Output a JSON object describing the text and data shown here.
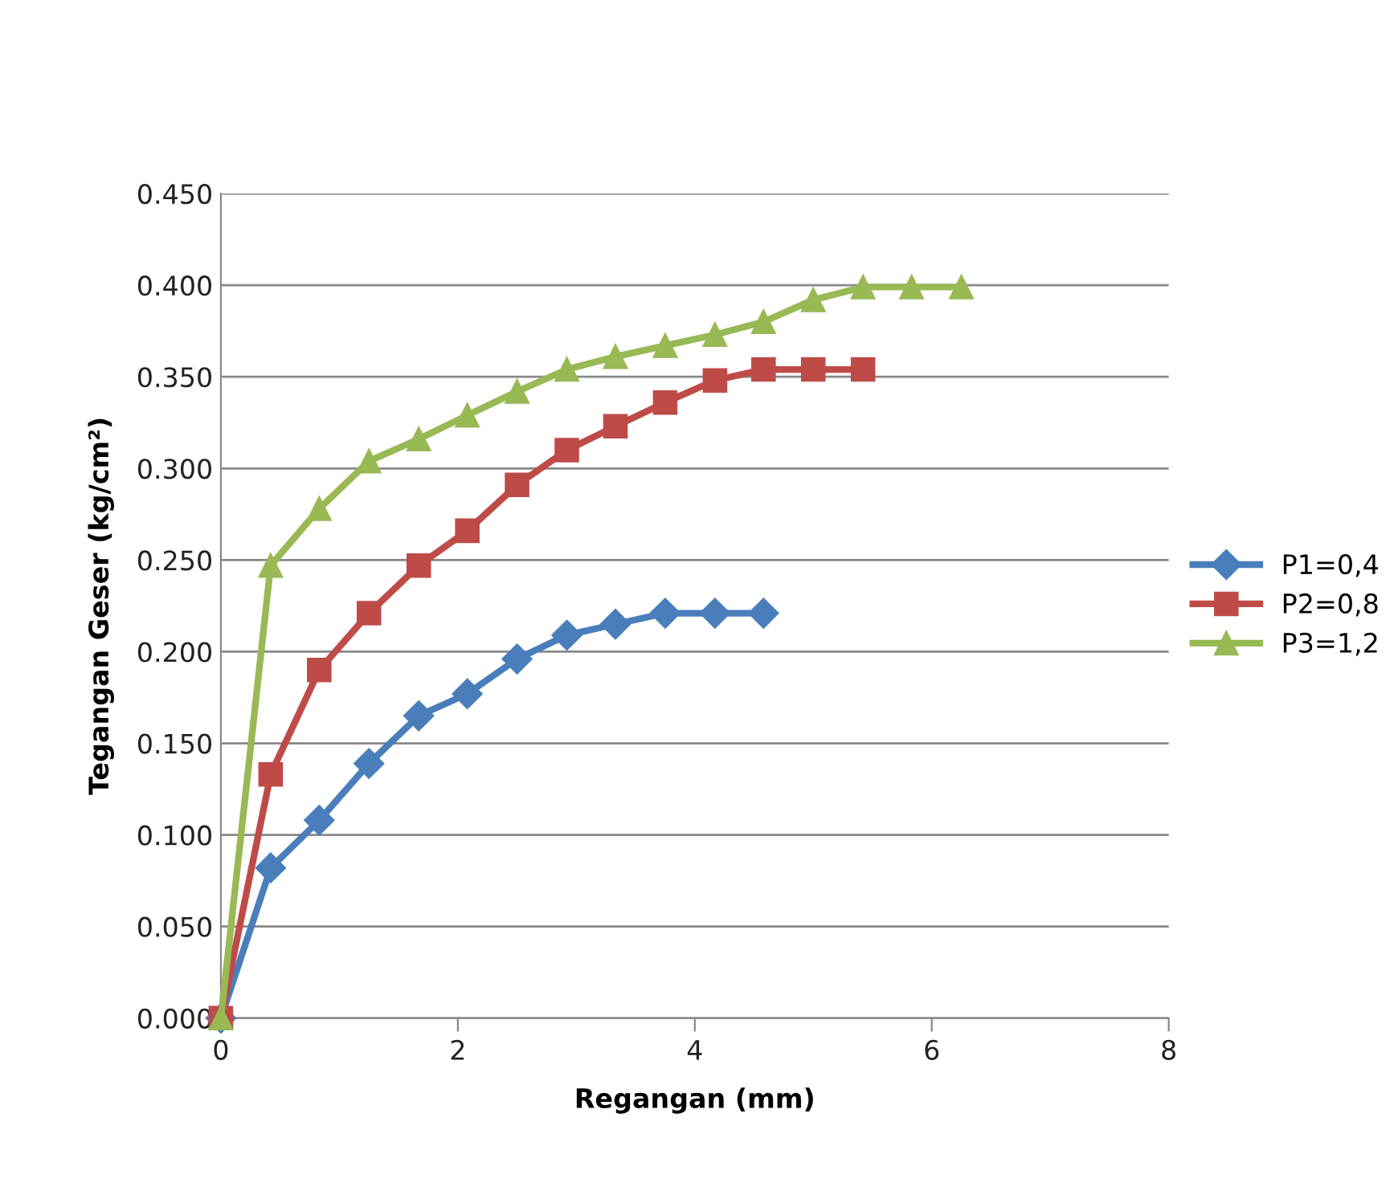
{
  "chart_data": {
    "type": "line",
    "xlabel": "Regangan (mm)",
    "ylabel": "Tegangan Geser (kg/cm²)",
    "xlim": [
      0,
      8
    ],
    "xticks": [
      0,
      2,
      4,
      6,
      8
    ],
    "ylim": [
      0,
      0.45
    ],
    "yticks": [
      {
        "value": 0,
        "label": "0.000"
      },
      {
        "value": 0.05,
        "label": "0.050"
      },
      {
        "value": 0.1,
        "label": "0.100"
      },
      {
        "value": 0.15,
        "label": "0.150"
      },
      {
        "value": 0.2,
        "label": "0.200"
      },
      {
        "value": 0.25,
        "label": "0.250"
      },
      {
        "value": 0.3,
        "label": "0.300"
      },
      {
        "value": 0.35,
        "label": "0.350"
      },
      {
        "value": 0.4,
        "label": "0.400"
      },
      {
        "value": 0.45,
        "label": "0.450"
      }
    ],
    "grid": "y",
    "legend": "right",
    "line_style": "solid",
    "series": [
      {
        "name": "P1=0,4",
        "color": "#4a7ebb",
        "marker": "diamond",
        "x": [
          0,
          0.42,
          0.83,
          1.25,
          1.67,
          2.08,
          2.5,
          2.92,
          3.33,
          3.75,
          4.17,
          4.58
        ],
        "values": [
          0,
          0.082,
          0.108,
          0.139,
          0.165,
          0.177,
          0.196,
          0.209,
          0.215,
          0.221,
          0.221,
          0.221
        ]
      },
      {
        "name": "P2=0,8",
        "color": "#be4b48",
        "marker": "square",
        "x": [
          0,
          0.42,
          0.83,
          1.25,
          1.67,
          2.08,
          2.5,
          2.92,
          3.33,
          3.75,
          4.17,
          4.58,
          5.0,
          5.42
        ],
        "values": [
          0,
          0.133,
          0.19,
          0.221,
          0.247,
          0.266,
          0.291,
          0.31,
          0.323,
          0.336,
          0.348,
          0.354,
          0.354,
          0.354
        ]
      },
      {
        "name": "P3=1,2",
        "color": "#98b954",
        "marker": "triangle",
        "x": [
          0,
          0.42,
          0.83,
          1.25,
          1.67,
          2.08,
          2.5,
          2.92,
          3.33,
          3.75,
          4.17,
          4.58,
          5.0,
          5.42,
          5.83,
          6.25
        ],
        "values": [
          0,
          0.247,
          0.278,
          0.304,
          0.316,
          0.329,
          0.342,
          0.354,
          0.361,
          0.367,
          0.373,
          0.38,
          0.392,
          0.399,
          0.399,
          0.399
        ]
      }
    ]
  }
}
